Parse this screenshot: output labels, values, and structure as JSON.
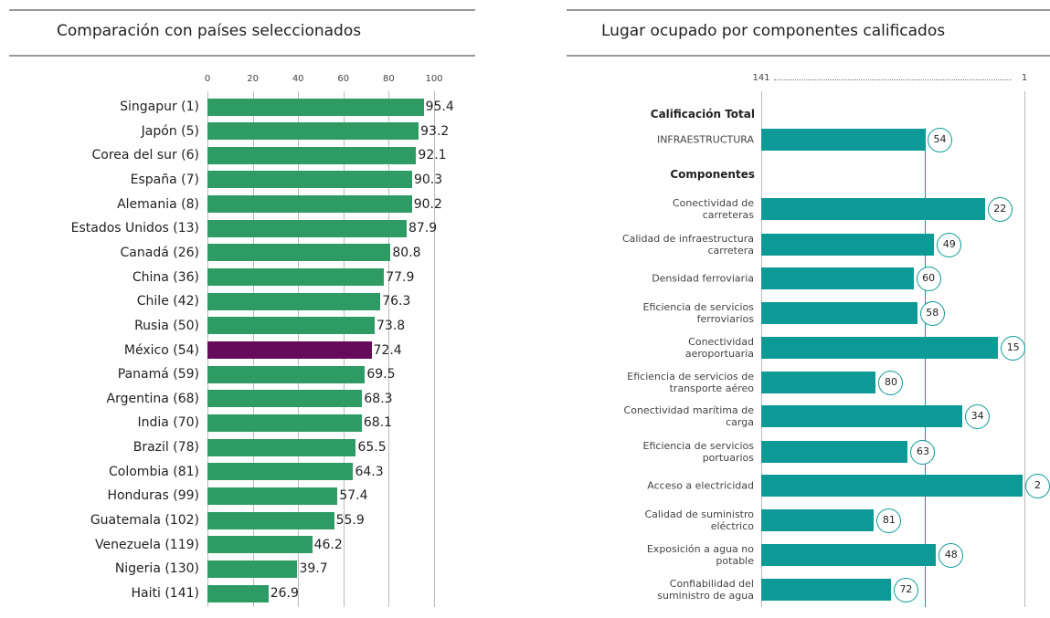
{
  "chart_data": [
    {
      "type": "bar",
      "orientation": "horizontal",
      "title": "Comparación con países seleccionados",
      "categories": [
        "Singapur (1)",
        "Japón (5)",
        "Corea del sur (6)",
        "España (7)",
        "Alemania (8)",
        "Estados Unidos (13)",
        "Canadá (26)",
        "China (36)",
        "Chile (42)",
        "Rusia (50)",
        "México (54)",
        "Panamá (59)",
        "Argentina (68)",
        "India (70)",
        "Brazil (78)",
        "Colombia (81)",
        "Honduras (99)",
        "Guatemala (102)",
        "Venezuela (119)",
        "Nigeria (130)",
        "Haiti (141)"
      ],
      "values": [
        95.4,
        93.2,
        92.1,
        90.3,
        90.2,
        87.9,
        80.8,
        77.9,
        76.3,
        73.8,
        72.4,
        69.5,
        68.3,
        68.1,
        65.5,
        64.3,
        57.4,
        55.9,
        46.2,
        39.7,
        26.9
      ],
      "colors": [
        "#2e9a64",
        "#2e9a64",
        "#2e9a64",
        "#2e9a64",
        "#2e9a64",
        "#2e9a64",
        "#2e9a64",
        "#2e9a64",
        "#2e9a64",
        "#2e9a64",
        "#660a5a",
        "#2e9a64",
        "#2e9a64",
        "#2e9a64",
        "#2e9a64",
        "#2e9a64",
        "#2e9a64",
        "#2e9a64",
        "#2e9a64",
        "#2e9a64",
        "#2e9a64"
      ],
      "xlim": [
        0,
        100
      ],
      "xticks": [
        0,
        20,
        40,
        60,
        80,
        100
      ],
      "grid": true
    },
    {
      "type": "rank_bar",
      "orientation": "horizontal",
      "title": "Lugar ocupado por componentes calificados",
      "headings": [
        "Calificación Total",
        "Componentes"
      ],
      "categories": [
        "INFRAESTRUCTURA",
        "Conectividad de\ncarreteras",
        "Calidad de infraestructura\ncarretera",
        "Densidad ferroviaria",
        "Eficiencia de servicios\nferroviarios",
        "Conectividad\naeroportuaria",
        "Eficiencia de servicios de\ntransporte aéreo",
        "Conectividad marítima de\ncarga",
        "Eficiencia de servicios\nportuarios",
        "Acceso a electricidad",
        "Calidad de suministro\neléctrico",
        "Exposición a agua no\npotable",
        "Confiabilidad del\nsuministro de agua"
      ],
      "values": [
        54,
        22,
        49,
        60,
        58,
        15,
        80,
        34,
        63,
        2,
        81,
        48,
        72
      ],
      "color": "#0d9a96",
      "xlim": [
        141,
        1
      ],
      "xticks": [
        141,
        1
      ],
      "grid": true
    }
  ]
}
